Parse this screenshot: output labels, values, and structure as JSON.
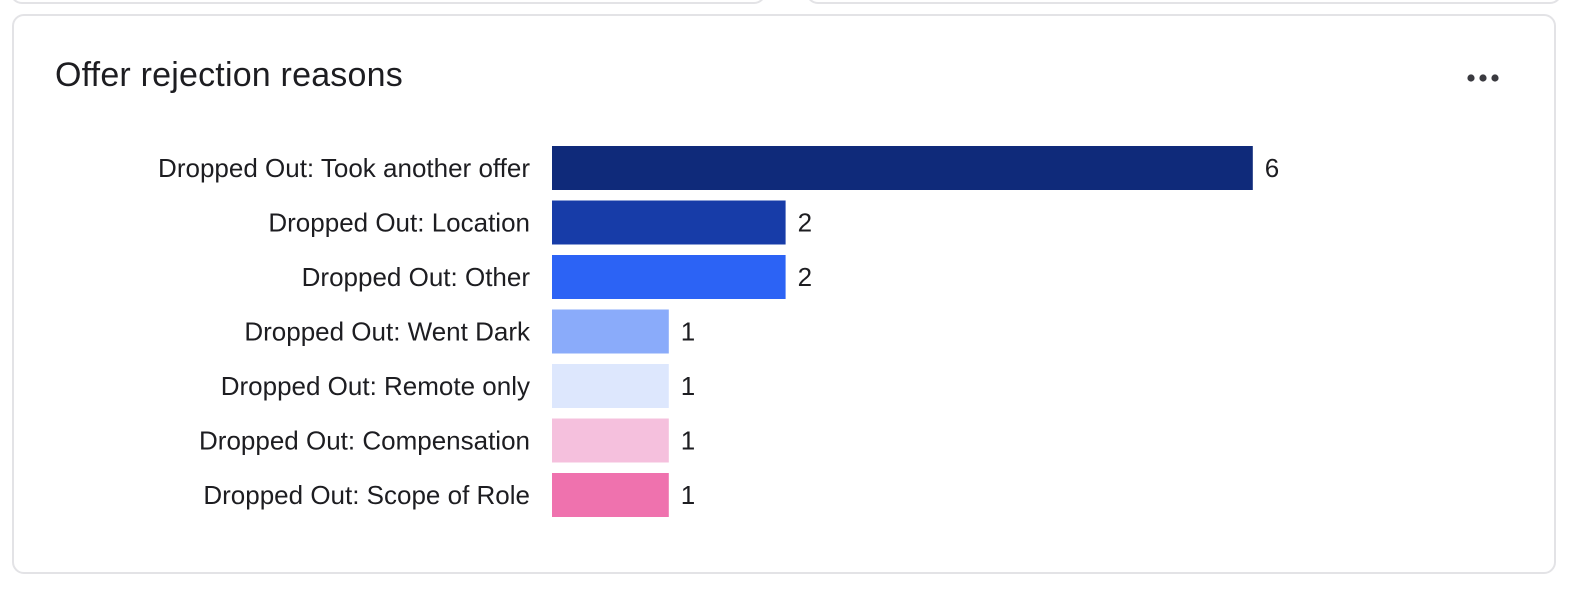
{
  "card": {
    "title": "Offer rejection reasons",
    "menu_icon": "more-horizontal-icon"
  },
  "chart_data": {
    "type": "bar",
    "orientation": "horizontal",
    "title": "Offer rejection reasons",
    "categories": [
      "Dropped Out: Took another offer",
      "Dropped Out: Location",
      "Dropped Out: Other",
      "Dropped Out: Went Dark",
      "Dropped Out: Remote only",
      "Dropped Out: Compensation",
      "Dropped Out: Scope of Role"
    ],
    "values": [
      6,
      2,
      2,
      1,
      1,
      1,
      1
    ],
    "colors": [
      "#0f2a7a",
      "#173ca8",
      "#2c63f5",
      "#8aabfa",
      "#dde7fd",
      "#f5c0dd",
      "#ef72ae"
    ],
    "xlim": [
      0,
      6
    ],
    "grid": false,
    "legend": "none",
    "data_labels": true
  }
}
